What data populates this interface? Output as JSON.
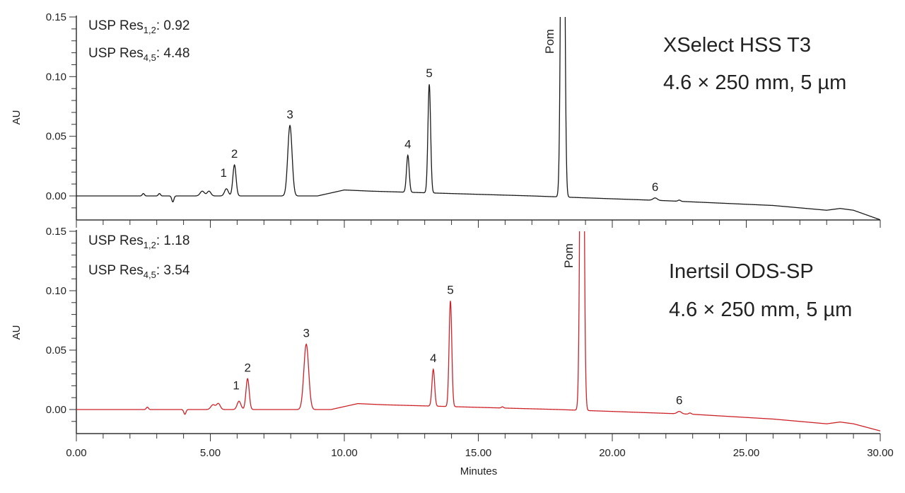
{
  "chart_data": [
    {
      "type": "line",
      "title": "XSelect HSS T3",
      "subtitle": "4.6 × 250 mm, 5 µm",
      "xlabel": "Minutes",
      "ylabel": "AU",
      "xlim": [
        0,
        30
      ],
      "ylim": [
        -0.02,
        0.15
      ],
      "yticks": [
        "0.15",
        "0.10",
        "0.05",
        "0.00"
      ],
      "ytick_values": [
        0.15,
        0.1,
        0.05,
        0.0
      ],
      "color": "#1a1a1a",
      "annotations": [
        {
          "prefix": "USP Res",
          "sub": "1,2",
          "value": ": 0.92"
        },
        {
          "prefix": "USP Res",
          "sub": "4,5",
          "value": ": 4.48"
        }
      ],
      "peaks": [
        {
          "label": "1",
          "rt": 5.6,
          "height": 0.006,
          "sigma": 0.07
        },
        {
          "label": "2",
          "rt": 5.9,
          "height": 0.026,
          "sigma": 0.06
        },
        {
          "label": "3",
          "rt": 7.97,
          "height": 0.059,
          "sigma": 0.08
        },
        {
          "label": "4",
          "rt": 12.37,
          "height": 0.031,
          "sigma": 0.05
        },
        {
          "label": "5",
          "rt": 13.17,
          "height": 0.091,
          "sigma": 0.05
        },
        {
          "label": "Pom",
          "rt": 18.15,
          "height": 0.5,
          "sigma": 0.06
        },
        {
          "label": "6",
          "rt": 21.6,
          "height": 0.002,
          "sigma": 0.08
        }
      ],
      "minor_features": [
        {
          "rt": 2.5,
          "height": 0.002,
          "sigma": 0.04
        },
        {
          "rt": 3.1,
          "height": 0.002,
          "sigma": 0.04
        },
        {
          "rt": 3.6,
          "height": -0.005,
          "sigma": 0.04
        },
        {
          "rt": 4.7,
          "height": 0.004,
          "sigma": 0.08
        },
        {
          "rt": 4.95,
          "height": 0.004,
          "sigma": 0.07
        },
        {
          "rt": 22.5,
          "height": 0.001,
          "sigma": 0.05
        }
      ],
      "baseline": [
        [
          0,
          0
        ],
        [
          9,
          0
        ],
        [
          10,
          0.005
        ],
        [
          11,
          0.004
        ],
        [
          17,
          0.0
        ],
        [
          22,
          -0.004
        ],
        [
          26,
          -0.008
        ],
        [
          28,
          -0.012
        ],
        [
          28.5,
          -0.0105
        ],
        [
          29,
          -0.012
        ],
        [
          30,
          -0.02
        ]
      ]
    },
    {
      "type": "line",
      "title": "Inertsil ODS-SP",
      "subtitle": "4.6 × 250 mm, 5 µm",
      "xlabel": "Minutes",
      "ylabel": "AU",
      "xlim": [
        0,
        30
      ],
      "ylim": [
        -0.02,
        0.15
      ],
      "yticks": [
        "0.15",
        "0.10",
        "0.05",
        "0.00"
      ],
      "ytick_values": [
        0.15,
        0.1,
        0.05,
        0.0
      ],
      "xticks": [
        "0.00",
        "5.00",
        "10.00",
        "15.00",
        "20.00",
        "25.00",
        "30.00"
      ],
      "xtick_values": [
        0,
        5,
        10,
        15,
        20,
        25,
        30
      ],
      "color": "#cc2229",
      "annotations": [
        {
          "prefix": "USP Res",
          "sub": "1,2",
          "value": ": 1.18"
        },
        {
          "prefix": "USP Res",
          "sub": "4,5",
          "value": ": 3.54"
        }
      ],
      "peaks": [
        {
          "label": "1",
          "rt": 6.07,
          "height": 0.007,
          "sigma": 0.07
        },
        {
          "label": "2",
          "rt": 6.39,
          "height": 0.026,
          "sigma": 0.06
        },
        {
          "label": "3",
          "rt": 8.58,
          "height": 0.055,
          "sigma": 0.09
        },
        {
          "label": "4",
          "rt": 13.32,
          "height": 0.031,
          "sigma": 0.05
        },
        {
          "label": "5",
          "rt": 13.96,
          "height": 0.089,
          "sigma": 0.05
        },
        {
          "label": "Pom",
          "rt": 18.87,
          "height": 0.5,
          "sigma": 0.06
        },
        {
          "label": "6",
          "rt": 22.5,
          "height": 0.002,
          "sigma": 0.08
        }
      ],
      "minor_features": [
        {
          "rt": 2.65,
          "height": 0.002,
          "sigma": 0.04
        },
        {
          "rt": 4.05,
          "height": -0.004,
          "sigma": 0.04
        },
        {
          "rt": 5.1,
          "height": 0.004,
          "sigma": 0.08
        },
        {
          "rt": 5.3,
          "height": 0.005,
          "sigma": 0.07
        },
        {
          "rt": 15.9,
          "height": 0.001,
          "sigma": 0.04
        },
        {
          "rt": 22.9,
          "height": 0.001,
          "sigma": 0.05
        }
      ],
      "baseline": [
        [
          0,
          0
        ],
        [
          9.5,
          0
        ],
        [
          10.5,
          0.005
        ],
        [
          11.5,
          0.004
        ],
        [
          18,
          0.0
        ],
        [
          23,
          -0.004
        ],
        [
          26,
          -0.008
        ],
        [
          28,
          -0.012
        ],
        [
          28.5,
          -0.0105
        ],
        [
          29,
          -0.012
        ],
        [
          30,
          -0.018
        ]
      ]
    }
  ]
}
